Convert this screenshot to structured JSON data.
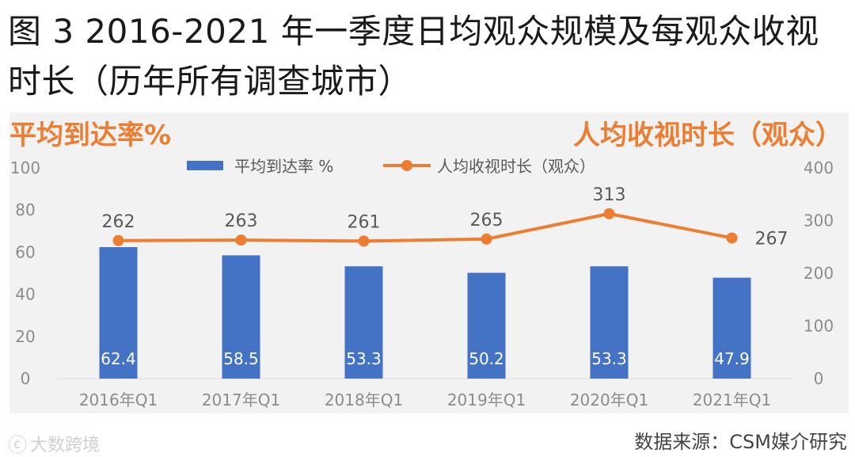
{
  "title": "图 3 2016-2021 年一季度日均观众规模及每观众收视时长（历年所有调查城市）",
  "source": "数据来源：CSM媒介研究",
  "watermark": "大数跨境",
  "colors": {
    "bar": "#4472c4",
    "line": "#ed7d31",
    "axis_title": "#ed7d31",
    "tick": "#8c8c8c",
    "label": "#595959",
    "panel": "#f2f2f2"
  },
  "chart_data": {
    "type": "bar",
    "categories": [
      "2016年Q1",
      "2017年Q1",
      "2018年Q1",
      "2019年Q1",
      "2020年Q1",
      "2021年Q1"
    ],
    "series": [
      {
        "name": "平均到达率 %",
        "type": "bar",
        "axis": "left",
        "values": [
          62.4,
          58.5,
          53.3,
          50.2,
          53.3,
          47.9
        ]
      },
      {
        "name": "人均收视时长（观众）",
        "type": "line",
        "axis": "right",
        "values": [
          262,
          263,
          261,
          265,
          313,
          267
        ]
      }
    ],
    "ylabel": "平均到达率%",
    "y2label": "人均收视时长（观众）",
    "ylim": [
      0,
      100
    ],
    "y2lim": [
      0,
      400
    ],
    "yticks": [
      "0",
      "20",
      "40",
      "60",
      "80",
      "100"
    ],
    "y2ticks": [
      "0",
      "100",
      "200",
      "300",
      "400"
    ],
    "legend": "top",
    "grid": false
  }
}
